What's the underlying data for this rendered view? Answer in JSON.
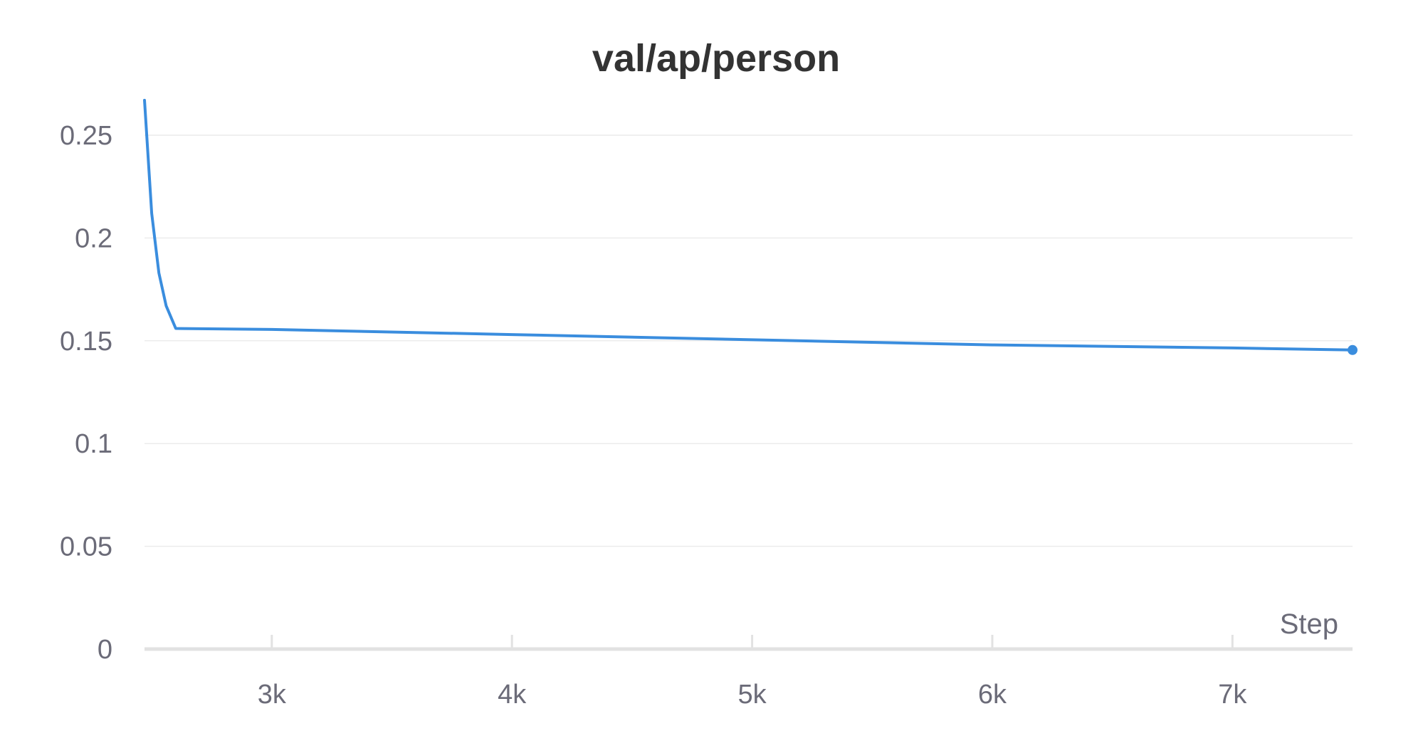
{
  "chart_data": {
    "type": "line",
    "title": "val/ap/person",
    "xlabel": "Step",
    "ylabel": "",
    "xlim": [
      2470,
      7500
    ],
    "ylim": [
      0,
      0.26
    ],
    "x_ticks": [
      {
        "value": 3000,
        "label": "3k"
      },
      {
        "value": 4000,
        "label": "4k"
      },
      {
        "value": 5000,
        "label": "5k"
      },
      {
        "value": 6000,
        "label": "6k"
      },
      {
        "value": 7000,
        "label": "7k"
      }
    ],
    "y_ticks": [
      {
        "value": 0,
        "label": "0"
      },
      {
        "value": 0.05,
        "label": "0.05"
      },
      {
        "value": 0.1,
        "label": "0.1"
      },
      {
        "value": 0.15,
        "label": "0.15"
      },
      {
        "value": 0.2,
        "label": "0.2"
      },
      {
        "value": 0.25,
        "label": "0.25"
      }
    ],
    "grid": true,
    "series": [
      {
        "color": "#3a8dde",
        "x": [
          2470,
          2500,
          2530,
          2560,
          2600,
          3000,
          4000,
          5000,
          6000,
          7000,
          7500
        ],
        "y": [
          0.267,
          0.212,
          0.183,
          0.167,
          0.156,
          0.1555,
          0.153,
          0.1505,
          0.148,
          0.1465,
          0.1455
        ],
        "end_marker": true
      }
    ]
  }
}
